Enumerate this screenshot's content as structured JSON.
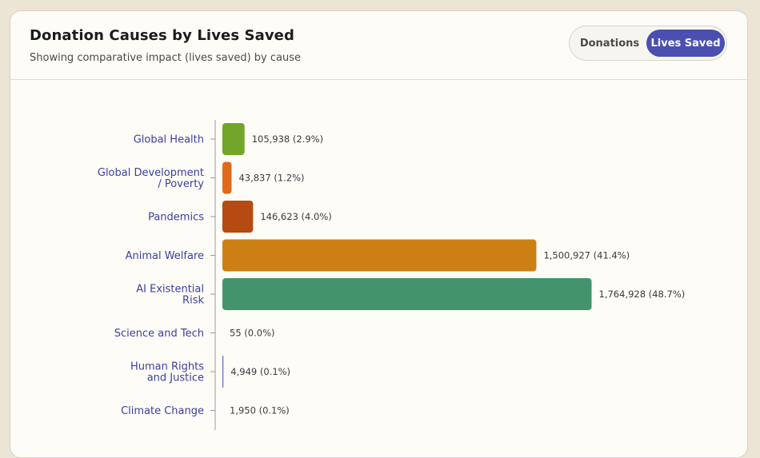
{
  "header": {
    "title": "Donation Causes by Lives Saved",
    "subtitle": "Showing comparative impact (lives saved) by cause"
  },
  "toggle": {
    "donations_label": "Donations",
    "lives_label": "Lives Saved",
    "active": "Lives Saved"
  },
  "colors": {
    "accent": "#4a4fb0",
    "category_label": "#3b3fa0"
  },
  "chart_data": {
    "type": "bar",
    "orientation": "horizontal",
    "categories": [
      [
        "Global Health"
      ],
      [
        "Global Development",
        "/ Poverty"
      ],
      [
        "Pandemics"
      ],
      [
        "Animal Welfare"
      ],
      [
        "AI Existential",
        "Risk"
      ],
      [
        "Science and Tech"
      ],
      [
        "Human Rights",
        "and Justice"
      ],
      [
        "Climate Change"
      ]
    ],
    "values": [
      105938,
      43837,
      146623,
      1500927,
      1764928,
      55,
      4949,
      1950
    ],
    "value_labels": [
      "105,938 (2.9%)",
      "43,837 (1.2%)",
      "146,623 (4.0%)",
      "1,500,927 (41.4%)",
      "1,764,928 (48.7%)",
      "55 (0.0%)",
      "4,949 (0.1%)",
      "1,950 (0.1%)"
    ],
    "colors": [
      "#72a52a",
      "#e0691a",
      "#b54a12",
      "#cc8014",
      "#43946c",
      "#8b8fd6",
      "#6a6fd0",
      "#8f92c8"
    ],
    "grid": false,
    "legend": false
  }
}
